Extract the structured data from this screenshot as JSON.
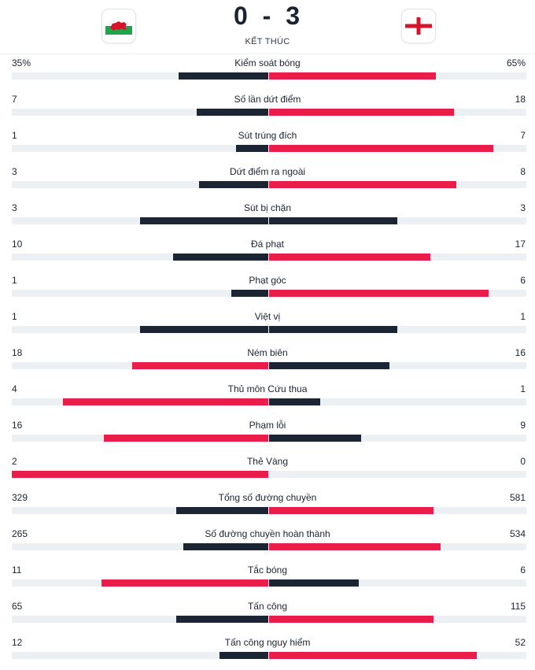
{
  "header": {
    "home_flag_icon": "wales-flag-icon",
    "away_flag_icon": "england-flag-icon",
    "home_score": "0",
    "separator": "-",
    "away_score": "3",
    "status": "KẾT THÚC"
  },
  "colors": {
    "dark": "#1b2533",
    "red": "#ea1c4a",
    "track": "#edf0f2"
  },
  "stats": [
    {
      "label": "Kiểm soát bóng",
      "home": "35%",
      "away": "65%",
      "home_share": 0.35,
      "away_share": 0.65,
      "leader": "away"
    },
    {
      "label": "Số lần dứt điểm",
      "home": "7",
      "away": "18",
      "home_share": 0.28,
      "away_share": 0.72,
      "leader": "away"
    },
    {
      "label": "Sút trúng đích",
      "home": "1",
      "away": "7",
      "home_share": 0.125,
      "away_share": 0.875,
      "leader": "away"
    },
    {
      "label": "Dứt điểm ra ngoài",
      "home": "3",
      "away": "8",
      "home_share": 0.27,
      "away_share": 0.73,
      "leader": "away"
    },
    {
      "label": "Sút bị chặn",
      "home": "3",
      "away": "3",
      "home_share": 0.5,
      "away_share": 0.5,
      "leader": "none"
    },
    {
      "label": "Đá phạt",
      "home": "10",
      "away": "17",
      "home_share": 0.37,
      "away_share": 0.63,
      "leader": "away"
    },
    {
      "label": "Phạt góc",
      "home": "1",
      "away": "6",
      "home_share": 0.143,
      "away_share": 0.857,
      "leader": "away"
    },
    {
      "label": "Việt vị",
      "home": "1",
      "away": "1",
      "home_share": 0.5,
      "away_share": 0.5,
      "leader": "none"
    },
    {
      "label": "Ném biên",
      "home": "18",
      "away": "16",
      "home_share": 0.53,
      "away_share": 0.47,
      "leader": "home"
    },
    {
      "label": "Thủ môn Cứu thua",
      "home": "4",
      "away": "1",
      "home_share": 0.8,
      "away_share": 0.2,
      "leader": "home"
    },
    {
      "label": "Phạm lỗi",
      "home": "16",
      "away": "9",
      "home_share": 0.64,
      "away_share": 0.36,
      "leader": "home"
    },
    {
      "label": "Thẻ Vàng",
      "home": "2",
      "away": "0",
      "home_share": 1.0,
      "away_share": 0.0,
      "leader": "home"
    },
    {
      "label": "Tổng số đường chuyền",
      "home": "329",
      "away": "581",
      "home_share": 0.36,
      "away_share": 0.64,
      "leader": "away"
    },
    {
      "label": "Số đường chuyền hoàn thành",
      "home": "265",
      "away": "534",
      "home_share": 0.33,
      "away_share": 0.67,
      "leader": "away"
    },
    {
      "label": "Tắc bóng",
      "home": "11",
      "away": "6",
      "home_share": 0.65,
      "away_share": 0.35,
      "leader": "home"
    },
    {
      "label": "Tấn công",
      "home": "65",
      "away": "115",
      "home_share": 0.36,
      "away_share": 0.64,
      "leader": "away"
    },
    {
      "label": "Tấn công nguy hiểm",
      "home": "12",
      "away": "52",
      "home_share": 0.19,
      "away_share": 0.81,
      "leader": "away"
    }
  ]
}
